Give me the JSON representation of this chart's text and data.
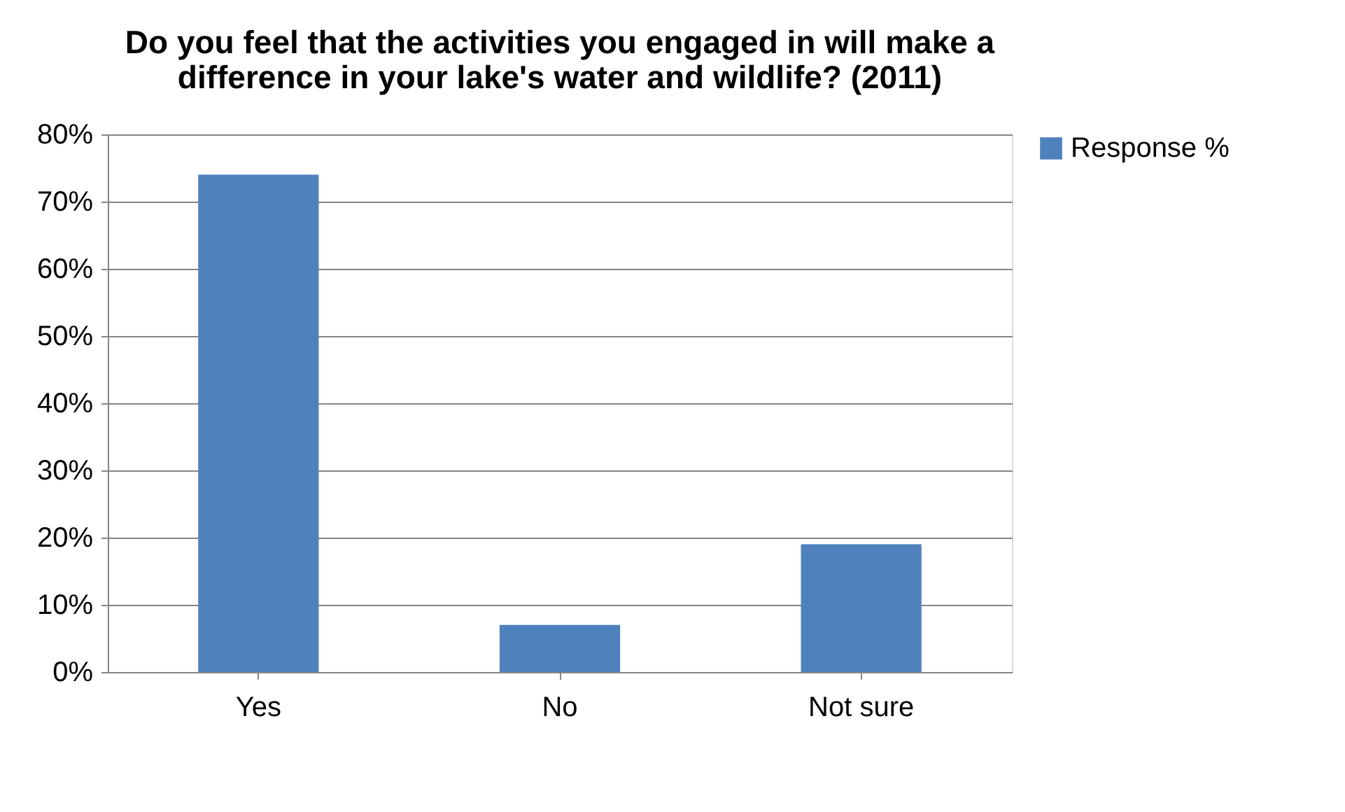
{
  "chart_data": {
    "type": "bar",
    "title": "Do you feel that the activities you engaged in will make a difference in your lake's water and wildlife? (2011)",
    "categories": [
      "Yes",
      "No",
      "Not sure"
    ],
    "series": [
      {
        "name": "Response  %",
        "color": "#4f81bd",
        "values": [
          74,
          7,
          19
        ]
      }
    ],
    "ylim": [
      0,
      80
    ],
    "yticks": [
      {
        "value": 0,
        "label": "0%"
      },
      {
        "value": 10,
        "label": "10%"
      },
      {
        "value": 20,
        "label": "20%"
      },
      {
        "value": 30,
        "label": "30%"
      },
      {
        "value": 40,
        "label": "40%"
      },
      {
        "value": 50,
        "label": "50%"
      },
      {
        "value": 60,
        "label": "60%"
      },
      {
        "value": 70,
        "label": "70%"
      },
      {
        "value": 80,
        "label": "80%"
      }
    ],
    "grid": "y",
    "legend": "right"
  }
}
